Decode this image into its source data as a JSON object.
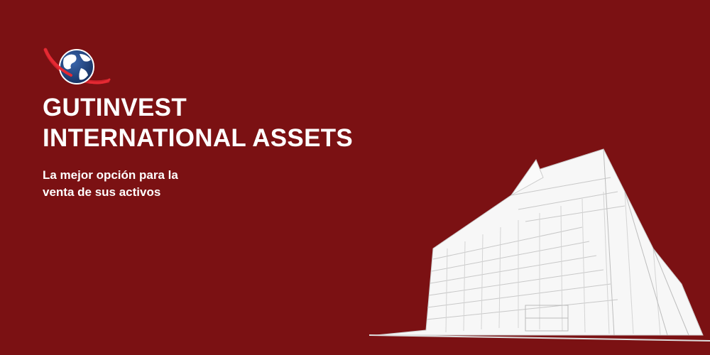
{
  "brand": {
    "title_line1": "GUTINVEST",
    "title_line2": "INTERNATIONAL ASSETS",
    "tagline_line1": "La mejor opción para la",
    "tagline_line2": "venta de sus activos"
  },
  "colors": {
    "background": "#7b1113",
    "text": "#ffffff",
    "orbit": "#d0202a",
    "globe_ocean": "#1c3f7a",
    "globe_land": "#ffffff",
    "sketch": "#e8e8e8"
  },
  "icons": {
    "logo": "globe-orbit-icon",
    "illustration": "building-sketch-illustration"
  }
}
